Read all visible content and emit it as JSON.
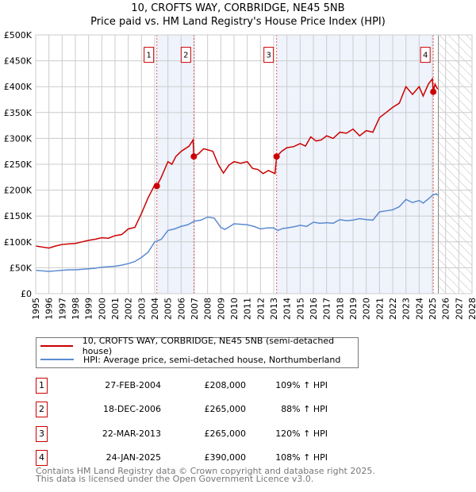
{
  "chart_data": {
    "type": "line",
    "title": "10, CROFTS WAY, CORBRIDGE, NE45 5NB",
    "subtitle": "Price paid vs. HM Land Registry's House Price Index (HPI)",
    "xlim": [
      1995,
      2028
    ],
    "ylim": [
      0,
      500000
    ],
    "x_ticks": [
      "1995",
      "1996",
      "1997",
      "1998",
      "1999",
      "2000",
      "2001",
      "2002",
      "2003",
      "2004",
      "2005",
      "2006",
      "2007",
      "2008",
      "2009",
      "2010",
      "2011",
      "2012",
      "2013",
      "2014",
      "2015",
      "2016",
      "2017",
      "2018",
      "2019",
      "2020",
      "2021",
      "2022",
      "2023",
      "2024",
      "2025",
      "2026",
      "2027",
      "2028"
    ],
    "y_ticks": [
      {
        "v": 0,
        "label": "£0"
      },
      {
        "v": 50000,
        "label": "£50K"
      },
      {
        "v": 100000,
        "label": "£100K"
      },
      {
        "v": 150000,
        "label": "£150K"
      },
      {
        "v": 200000,
        "label": "£200K"
      },
      {
        "v": 250000,
        "label": "£250K"
      },
      {
        "v": 300000,
        "label": "£300K"
      },
      {
        "v": 350000,
        "label": "£350K"
      },
      {
        "v": 400000,
        "label": "£400K"
      },
      {
        "v": 450000,
        "label": "£450K"
      },
      {
        "v": 500000,
        "label": "£500K"
      }
    ],
    "grid": true,
    "series": [
      {
        "name": "10, CROFTS WAY, CORBRIDGE, NE45 5NB (semi-detached house)",
        "color": "#cc0000",
        "x": [
          1995,
          1995.5,
          1996,
          1996.5,
          1997,
          1997.5,
          1998,
          1998.5,
          1999,
          1999.5,
          2000,
          2000.5,
          2001,
          2001.5,
          2002,
          2002.5,
          2003,
          2003.5,
          2004,
          2004.16,
          2004.5,
          2005,
          2005.3,
          2005.6,
          2006,
          2006.3,
          2006.6,
          2006.9,
          2006.96,
          2007.3,
          2007.7,
          2008,
          2008.4,
          2008.8,
          2009.2,
          2009.6,
          2010,
          2010.5,
          2011,
          2011.4,
          2011.8,
          2012.2,
          2012.6,
          2013.1,
          2013.22,
          2013.6,
          2014,
          2014.5,
          2015,
          2015.4,
          2015.8,
          2016.2,
          2016.6,
          2017,
          2017.5,
          2018,
          2018.5,
          2019,
          2019.5,
          2020,
          2020.5,
          2021,
          2021.5,
          2022,
          2022.5,
          2023,
          2023.5,
          2024,
          2024.3,
          2024.7,
          2025,
          2025.07,
          2025.2,
          2025.4
        ],
        "y": [
          92000,
          90000,
          88000,
          92000,
          95000,
          96000,
          97000,
          100000,
          103000,
          105000,
          108000,
          107000,
          112000,
          114000,
          125000,
          128000,
          155000,
          185000,
          210000,
          208000,
          225000,
          255000,
          250000,
          265000,
          275000,
          280000,
          285000,
          297000,
          265000,
          270000,
          280000,
          278000,
          275000,
          250000,
          233000,
          248000,
          255000,
          252000,
          255000,
          242000,
          240000,
          232000,
          238000,
          232000,
          265000,
          275000,
          282000,
          284000,
          290000,
          285000,
          303000,
          295000,
          297000,
          305000,
          300000,
          312000,
          310000,
          318000,
          305000,
          315000,
          312000,
          340000,
          350000,
          360000,
          368000,
          400000,
          385000,
          400000,
          382000,
          405000,
          415000,
          390000,
          405000,
          395000
        ]
      },
      {
        "name": "HPI: Average price, semi-detached house, Northumberland",
        "color": "#5b8bd0",
        "x": [
          1995,
          1995.5,
          1996,
          1996.5,
          1997,
          1997.5,
          1998,
          1998.5,
          1999,
          1999.5,
          2000,
          2000.5,
          2001,
          2001.5,
          2002,
          2002.5,
          2003,
          2003.5,
          2004,
          2004.5,
          2005,
          2005.5,
          2006,
          2006.5,
          2007,
          2007.5,
          2008,
          2008.5,
          2009,
          2009.3,
          2009.7,
          2010,
          2010.5,
          2011,
          2011.5,
          2012,
          2012.5,
          2013,
          2013.3,
          2013.7,
          2014,
          2014.5,
          2015,
          2015.5,
          2016,
          2016.5,
          2017,
          2017.5,
          2018,
          2018.5,
          2019,
          2019.5,
          2020,
          2020.5,
          2021,
          2021.5,
          2022,
          2022.5,
          2023,
          2023.5,
          2024,
          2024.3,
          2024.7,
          2025,
          2025.3,
          2025.4
        ],
        "y": [
          45000,
          44000,
          43000,
          44000,
          45000,
          46000,
          46000,
          47000,
          48000,
          49000,
          51000,
          52000,
          53000,
          55000,
          58000,
          62000,
          70000,
          80000,
          100000,
          105000,
          122000,
          125000,
          130000,
          133000,
          140000,
          142000,
          148000,
          146000,
          128000,
          124000,
          130000,
          135000,
          134000,
          133000,
          130000,
          125000,
          127000,
          127000,
          122000,
          126000,
          127000,
          129000,
          132000,
          130000,
          138000,
          136000,
          137000,
          136000,
          143000,
          141000,
          142000,
          145000,
          143000,
          142000,
          158000,
          160000,
          162000,
          168000,
          182000,
          176000,
          180000,
          175000,
          183000,
          190000,
          193000,
          190000
        ]
      }
    ],
    "shaded_ranges": [
      [
        2004.16,
        2006.96
      ],
      [
        2013.22,
        2025.07
      ]
    ],
    "forecast_hatch_from": 2025.45,
    "sales": [
      {
        "n": "1",
        "x": 2004.16,
        "y": 208000,
        "date": "27-FEB-2004",
        "price": "£208,000",
        "hpi": "109% ↑ HPI"
      },
      {
        "n": "2",
        "x": 2006.96,
        "y": 265000,
        "date": "18-DEC-2006",
        "price": "£265,000",
        "hpi": "88% ↑ HPI"
      },
      {
        "n": "3",
        "x": 2013.22,
        "y": 265000,
        "date": "22-MAR-2013",
        "price": "£265,000",
        "hpi": "120% ↑ HPI"
      },
      {
        "n": "4",
        "x": 2025.07,
        "y": 390000,
        "date": "24-JAN-2025",
        "price": "£390,000",
        "hpi": "108% ↑ HPI"
      }
    ],
    "marker_label_value": 450000
  },
  "footer": {
    "line1": "Contains HM Land Registry data © Crown copyright and database right 2025.",
    "line2": "This data is licensed under the Open Government Licence v3.0."
  }
}
